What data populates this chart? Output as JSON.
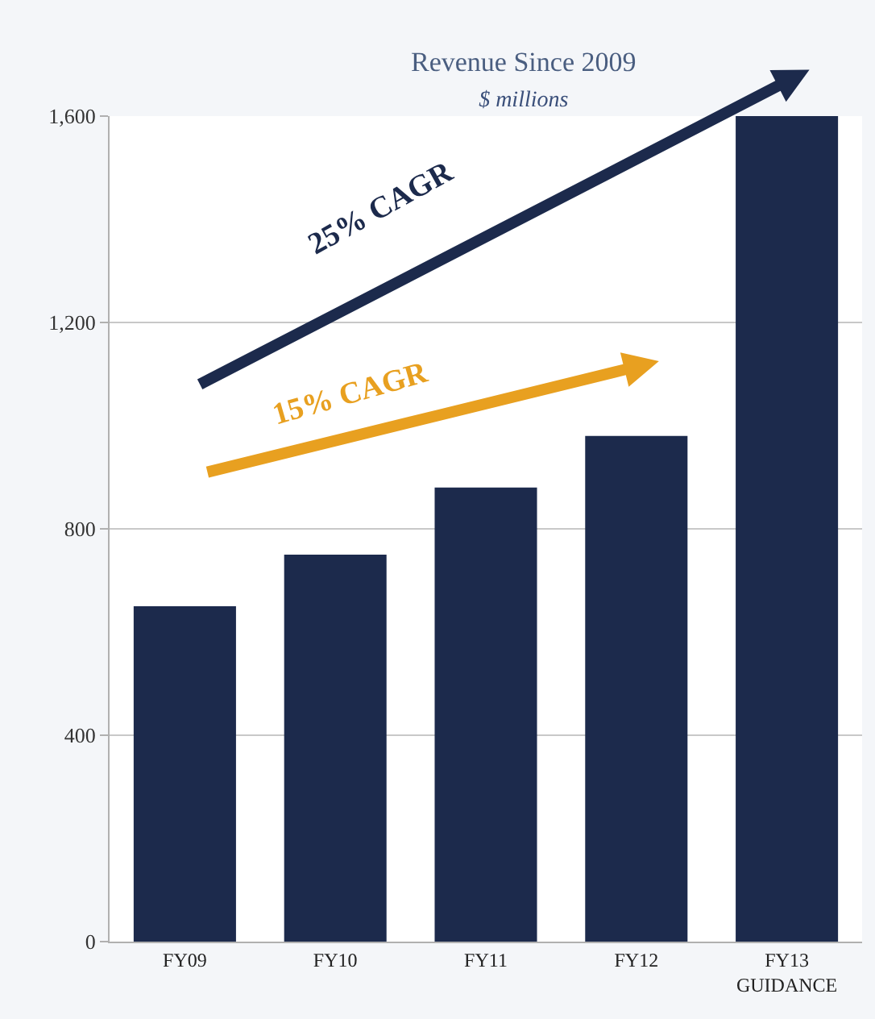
{
  "chart_data": {
    "type": "bar",
    "title": "Revenue Since 2009",
    "subtitle": "$ millions",
    "categories": [
      "FY09",
      "FY10",
      "FY11",
      "FY12",
      "FY13\nGUIDANCE"
    ],
    "values": [
      650,
      750,
      880,
      980,
      1600
    ],
    "color": "#1c2a4c",
    "ylim": [
      0,
      1600
    ],
    "yticks": [
      {
        "value": 0,
        "label": "0"
      },
      {
        "value": 400,
        "label": "400"
      },
      {
        "value": 800,
        "label": "800"
      },
      {
        "value": 1200,
        "label": "1,200"
      },
      {
        "value": 1600,
        "label": "1,600"
      }
    ],
    "grid": "y",
    "annotations": [
      "25% CAGR",
      "15% CAGR"
    ]
  }
}
